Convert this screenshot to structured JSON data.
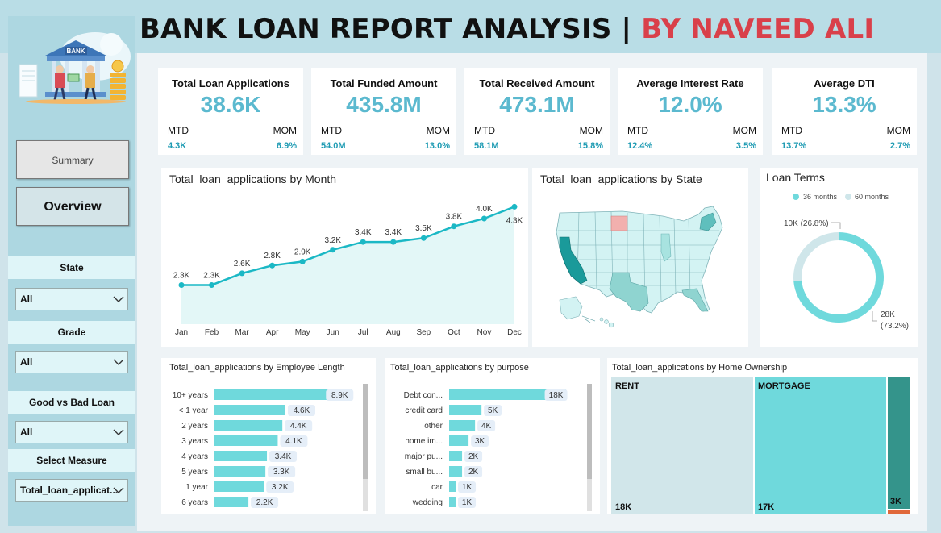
{
  "header": {
    "title_main": "BANK LOAN REPORT ANALYSIS | ",
    "title_accent": "BY NAVEED ALI"
  },
  "colors": {
    "accent": "#1bb8c5",
    "kpi_value": "#5bb9cf",
    "title_accent": "#d9404a",
    "bar": "#6fd9dc",
    "map_dark": "#1a9a9a",
    "map_light": "#d3f3f3"
  },
  "sidebar": {
    "logo_icon": "bank-illustration-icon",
    "logo_text": "BANK",
    "nav": {
      "summary": "Summary",
      "overview": "Overview"
    },
    "slicers": [
      {
        "label": "State",
        "value": "All"
      },
      {
        "label": "Grade",
        "value": "All"
      },
      {
        "label": "Good vs Bad Loan",
        "value": "All"
      },
      {
        "label": "Select Measure",
        "value": "Total_loan_applicat..."
      }
    ]
  },
  "kpis": [
    {
      "title": "Total Loan Applications",
      "value": "38.6K",
      "mtd_label": "MTD",
      "mom_label": "MOM",
      "mtd": "4.3K",
      "mom": "6.9%"
    },
    {
      "title": "Total Funded Amount",
      "value": "435.8M",
      "mtd_label": "MTD",
      "mom_label": "MOM",
      "mtd": "54.0M",
      "mom": "13.0%"
    },
    {
      "title": "Total Received Amount",
      "value": "473.1M",
      "mtd_label": "MTD",
      "mom_label": "MOM",
      "mtd": "58.1M",
      "mom": "15.8%"
    },
    {
      "title": "Average Interest Rate",
      "value": "12.0%",
      "mtd_label": "MTD",
      "mom_label": "MOM",
      "mtd": "12.4%",
      "mom": "3.5%"
    },
    {
      "title": "Average DTI",
      "value": "13.3%",
      "mtd_label": "MTD",
      "mom_label": "MOM",
      "mtd": "13.7%",
      "mom": "2.7%"
    }
  ],
  "chart_data": [
    {
      "type": "area",
      "title": "Total_loan_applications by Month",
      "categories": [
        "Jan",
        "Feb",
        "Mar",
        "Apr",
        "May",
        "Jun",
        "Jul",
        "Aug",
        "Sep",
        "Oct",
        "Nov",
        "Dec"
      ],
      "values": [
        2.3,
        2.3,
        2.6,
        2.8,
        2.9,
        3.2,
        3.4,
        3.4,
        3.5,
        3.8,
        4.0,
        4.3
      ],
      "labels": [
        "2.3K",
        "2.3K",
        "2.6K",
        "2.8K",
        "2.9K",
        "3.2K",
        "3.4K",
        "3.4K",
        "3.5K",
        "3.8K",
        "4.0K",
        "4.3K"
      ],
      "unit": "K"
    },
    {
      "type": "map",
      "title": "Total_loan_applications by State"
    },
    {
      "type": "pie",
      "title": "Loan Terms",
      "legend": [
        "36 months",
        "60 months"
      ],
      "values": [
        28,
        10
      ],
      "labels": [
        "28K (73.2%)",
        "10K (26.8%)"
      ],
      "label_top": "10K (26.8%)",
      "label_bottom_1": "28K",
      "label_bottom_2": "(73.2%)"
    },
    {
      "type": "bar",
      "title": "Total_loan_applications by Employee Length",
      "categories": [
        "10+ years",
        "< 1 year",
        "2 years",
        "3 years",
        "4 years",
        "5 years",
        "1 year",
        "6 years"
      ],
      "values": [
        8.9,
        4.6,
        4.4,
        4.1,
        3.4,
        3.3,
        3.2,
        2.2
      ],
      "labels": [
        "8.9K",
        "4.6K",
        "4.4K",
        "4.1K",
        "3.4K",
        "3.3K",
        "3.2K",
        "2.2K"
      ],
      "xlim": [
        0,
        9.2
      ]
    },
    {
      "type": "bar",
      "title": "Total_loan_applications by purpose",
      "categories": [
        "Debt con...",
        "credit card",
        "other",
        "home im...",
        "major pu...",
        "small bu...",
        "car",
        "wedding"
      ],
      "values": [
        18,
        5,
        4,
        3,
        2,
        2,
        1,
        1
      ],
      "labels": [
        "18K",
        "5K",
        "4K",
        "3K",
        "2K",
        "2K",
        "1K",
        "1K"
      ],
      "xlim": [
        0,
        18.8
      ]
    },
    {
      "type": "treemap",
      "title": "Total_loan_applications by Home Ownership",
      "categories": [
        "RENT",
        "MORTGAGE",
        "",
        ""
      ],
      "values": [
        18,
        17,
        3,
        0.1
      ],
      "labels": [
        "18K",
        "17K",
        "3K",
        ""
      ]
    }
  ]
}
